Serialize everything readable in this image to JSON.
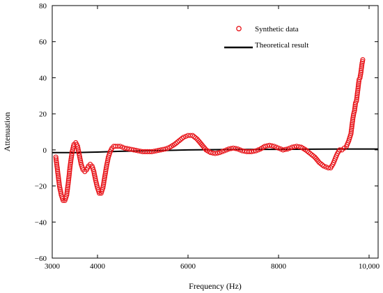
{
  "chart_data": {
    "type": "scatter",
    "xlabel": "Frequency (Hz)",
    "ylabel": "Attenuation",
    "xlim": [
      3000,
      10200
    ],
    "ylim": [
      -60,
      80
    ],
    "x_ticks": [
      3000,
      4000,
      6000,
      8000,
      10000
    ],
    "x_tick_labels": [
      "3000",
      "4000",
      "6000",
      "8000",
      "10,000"
    ],
    "y_ticks": [
      -60,
      -40,
      -20,
      0,
      20,
      40,
      60,
      80
    ],
    "y_tick_labels": [
      "−60",
      "−40",
      "−20",
      "0",
      "20",
      "40",
      "60",
      "80"
    ],
    "grid": false,
    "legend_position": "top-right",
    "colors": {
      "synthetic": "#e8161b",
      "theoretical": "#000000"
    },
    "series": [
      {
        "name": "Synthetic data",
        "kind": "markers",
        "marker": "open-circle",
        "points": [
          [
            3080,
            -4
          ],
          [
            3120,
            -12
          ],
          [
            3160,
            -20
          ],
          [
            3200,
            -25
          ],
          [
            3240,
            -28
          ],
          [
            3280,
            -28
          ],
          [
            3320,
            -25
          ],
          [
            3360,
            -17
          ],
          [
            3400,
            -8
          ],
          [
            3440,
            -1
          ],
          [
            3480,
            3
          ],
          [
            3520,
            4
          ],
          [
            3560,
            2
          ],
          [
            3600,
            -3
          ],
          [
            3640,
            -8
          ],
          [
            3680,
            -11
          ],
          [
            3720,
            -12
          ],
          [
            3760,
            -11
          ],
          [
            3800,
            -9
          ],
          [
            3840,
            -8
          ],
          [
            3880,
            -9
          ],
          [
            3920,
            -12
          ],
          [
            3960,
            -17
          ],
          [
            4000,
            -21
          ],
          [
            4040,
            -24
          ],
          [
            4080,
            -24
          ],
          [
            4120,
            -21
          ],
          [
            4160,
            -15
          ],
          [
            4200,
            -9
          ],
          [
            4240,
            -4
          ],
          [
            4280,
            -1
          ],
          [
            4320,
            1
          ],
          [
            4360,
            2
          ],
          [
            4400,
            2
          ],
          [
            4450,
            2
          ],
          [
            4500,
            2
          ],
          [
            4550,
            1.5
          ],
          [
            4600,
            1
          ],
          [
            4700,
            0.5
          ],
          [
            4800,
            0
          ],
          [
            4900,
            -0.5
          ],
          [
            5000,
            -1
          ],
          [
            5100,
            -1
          ],
          [
            5200,
            -1
          ],
          [
            5300,
            -0.5
          ],
          [
            5400,
            0
          ],
          [
            5500,
            0.5
          ],
          [
            5600,
            1.5
          ],
          [
            5700,
            3
          ],
          [
            5800,
            5
          ],
          [
            5900,
            7
          ],
          [
            6000,
            8
          ],
          [
            6100,
            8
          ],
          [
            6200,
            6
          ],
          [
            6300,
            3
          ],
          [
            6400,
            0
          ],
          [
            6500,
            -1.5
          ],
          [
            6600,
            -2
          ],
          [
            6700,
            -1.5
          ],
          [
            6800,
            -0.5
          ],
          [
            6900,
            0.5
          ],
          [
            7000,
            1
          ],
          [
            7100,
            0.5
          ],
          [
            7200,
            -0.5
          ],
          [
            7300,
            -1
          ],
          [
            7400,
            -1
          ],
          [
            7500,
            -0.5
          ],
          [
            7600,
            0.5
          ],
          [
            7700,
            2
          ],
          [
            7800,
            2.5
          ],
          [
            7900,
            2
          ],
          [
            8000,
            1
          ],
          [
            8100,
            0
          ],
          [
            8200,
            0.5
          ],
          [
            8300,
            1.5
          ],
          [
            8400,
            2
          ],
          [
            8500,
            1.5
          ],
          [
            8600,
            0
          ],
          [
            8700,
            -2
          ],
          [
            8800,
            -4
          ],
          [
            8900,
            -7
          ],
          [
            9000,
            -9
          ],
          [
            9100,
            -10
          ],
          [
            9150,
            -10
          ],
          [
            9200,
            -8
          ],
          [
            9250,
            -5
          ],
          [
            9300,
            -2
          ],
          [
            9350,
            0
          ],
          [
            9400,
            0
          ],
          [
            9450,
            1
          ],
          [
            9500,
            2
          ],
          [
            9550,
            5
          ],
          [
            9600,
            9
          ],
          [
            9620,
            13
          ],
          [
            9640,
            17
          ],
          [
            9660,
            20
          ],
          [
            9680,
            22
          ],
          [
            9700,
            26
          ],
          [
            9720,
            27
          ],
          [
            9740,
            31
          ],
          [
            9760,
            35
          ],
          [
            9780,
            39
          ],
          [
            9800,
            40
          ],
          [
            9820,
            43
          ],
          [
            9840,
            47
          ],
          [
            9860,
            50
          ]
        ]
      },
      {
        "name": "Theoretical result",
        "kind": "line",
        "points": [
          [
            3000,
            -1.5
          ],
          [
            3500,
            -1.5
          ],
          [
            4000,
            -1.2
          ],
          [
            4500,
            -0.8
          ],
          [
            5000,
            -0.5
          ],
          [
            5500,
            -0.3
          ],
          [
            6000,
            0
          ],
          [
            7000,
            0.2
          ],
          [
            8000,
            0.3
          ],
          [
            9000,
            0.4
          ],
          [
            9500,
            0.5
          ],
          [
            10200,
            0.5
          ]
        ]
      }
    ]
  }
}
